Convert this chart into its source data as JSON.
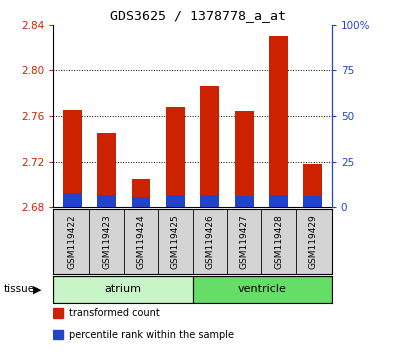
{
  "title": "GDS3625 / 1378778_a_at",
  "samples": [
    "GSM119422",
    "GSM119423",
    "GSM119424",
    "GSM119425",
    "GSM119426",
    "GSM119427",
    "GSM119428",
    "GSM119429"
  ],
  "red_values": [
    2.765,
    2.745,
    2.705,
    2.768,
    2.786,
    2.764,
    2.83,
    2.718
  ],
  "blue_values": [
    2.692,
    2.691,
    2.689,
    2.691,
    2.691,
    2.69,
    2.691,
    2.69
  ],
  "base": 2.68,
  "ylim_left": [
    2.68,
    2.84
  ],
  "ylim_right": [
    0,
    100
  ],
  "yticks_left": [
    2.68,
    2.72,
    2.76,
    2.8,
    2.84
  ],
  "yticks_right": [
    0,
    25,
    50,
    75,
    100
  ],
  "ytick_labels_right": [
    "0",
    "25",
    "50",
    "75",
    "100%"
  ],
  "grid_values": [
    2.72,
    2.76,
    2.8
  ],
  "tissue_groups": [
    {
      "label": "atrium",
      "start": 0,
      "end": 4,
      "color": "#c8f5c8"
    },
    {
      "label": "ventricle",
      "start": 4,
      "end": 8,
      "color": "#66dd66"
    }
  ],
  "tissue_label": "tissue",
  "bar_width": 0.55,
  "red_color": "#cc2200",
  "blue_color": "#2244cc",
  "legend_items": [
    {
      "label": "transformed count",
      "color": "#cc2200"
    },
    {
      "label": "percentile rank within the sample",
      "color": "#2244cc"
    }
  ],
  "left_tick_color": "#cc2200",
  "right_tick_color": "#2244cc",
  "xlabel_bg_color": "#d4d4d4",
  "fig_bg_color": "#ffffff"
}
